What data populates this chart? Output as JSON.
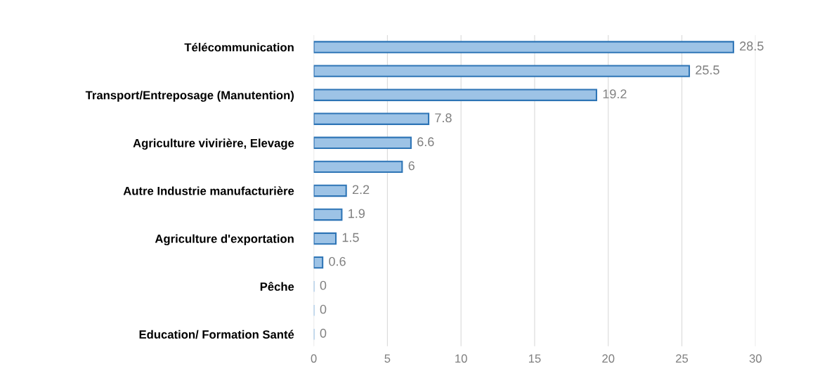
{
  "chart_data": {
    "type": "bar",
    "orientation": "horizontal",
    "categories": [
      "Télécommunication",
      null,
      "Transport/Entreposage (Manutention)",
      null,
      "Agriculture vivirière, Elevage",
      null,
      "Autre Industrie manufacturière",
      null,
      "Agriculture d'exportation",
      null,
      "Pêche",
      null,
      "Education/ Formation Santé"
    ],
    "values": [
      28.5,
      25.5,
      19.2,
      7.8,
      6.6,
      6,
      2.2,
      1.9,
      1.5,
      0.6,
      0,
      0,
      0
    ],
    "color": "#9dc3e6",
    "xlim": [
      0,
      30
    ],
    "xticks": [
      0,
      5,
      10,
      15,
      20,
      25,
      30
    ],
    "grid": "x",
    "data_labels": true,
    "legend": false
  }
}
